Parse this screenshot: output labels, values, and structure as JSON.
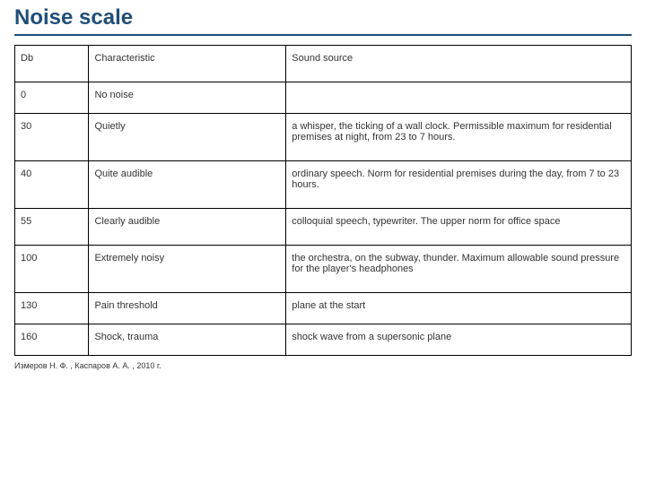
{
  "title": "Noise scale",
  "table": {
    "columns": [
      "Db",
      "Characteristic",
      "Sound source"
    ],
    "rows": [
      {
        "db": "0",
        "characteristic": "No noise",
        "source": ""
      },
      {
        "db": "30",
        "characteristic": "Quietly",
        "source": "a whisper, the ticking of a wall clock. Permissible maximum for residential premises at night, from 23 to 7 hours."
      },
      {
        "db": "40",
        "characteristic": "Quite audible",
        "source": "ordinary speech. Norm for residential premises during the day, from 7 to 23 hours."
      },
      {
        "db": "55",
        "characteristic": "Clearly audible",
        "source": "colloquial speech, typewriter. The upper norm for office space"
      },
      {
        "db": "100",
        "characteristic": "Extremely noisy",
        "source": "the orchestra, on the subway, thunder. Maximum allowable sound pressure for the player's headphones"
      },
      {
        "db": "130",
        "characteristic": "Pain threshold",
        "source": "plane at the start"
      },
      {
        "db": "160",
        "characteristic": "Shock, trauma",
        "source": "shock wave from a supersonic plane"
      }
    ]
  },
  "citation": "Измеров Н. Ф. , Каспаров А. А. , 2010 г.",
  "style": {
    "title_color": "#1f4e79",
    "border_color": "#000000",
    "text_color": "#333333",
    "background_color": "#ffffff",
    "title_fontsize": 24,
    "cell_fontsize": 11,
    "citation_fontsize": 9
  }
}
